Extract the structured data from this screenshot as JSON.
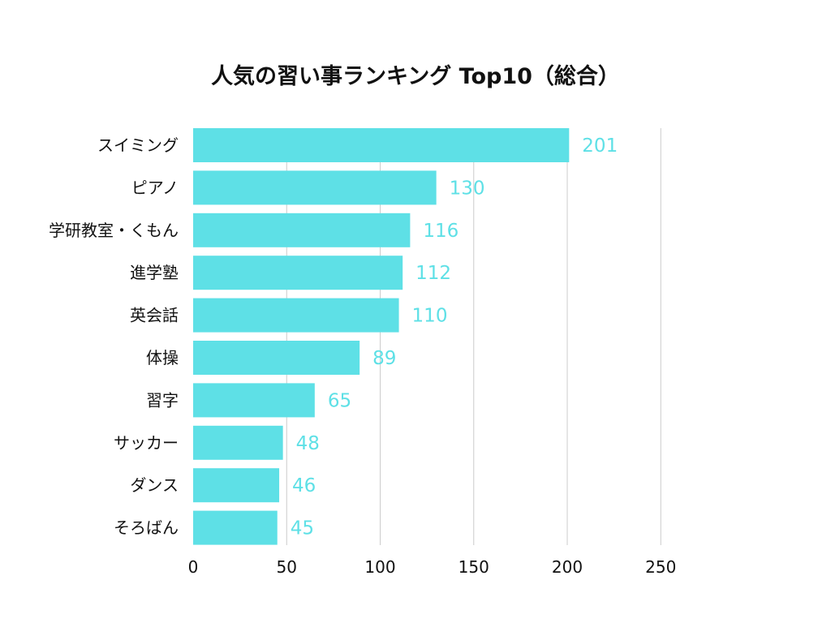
{
  "chart_data": {
    "type": "bar",
    "orientation": "horizontal",
    "title": "人気の習い事ランキング Top10（総合）",
    "categories": [
      "スイミング",
      "ピアノ",
      "学研教室・くもん",
      "進学塾",
      "英会話",
      "体操",
      "習字",
      "サッカー",
      "ダンス",
      "そろばん"
    ],
    "values": [
      201,
      130,
      116,
      112,
      110,
      89,
      65,
      48,
      46,
      45
    ],
    "xlim": [
      0,
      250
    ],
    "xticks": [
      0,
      50,
      100,
      150,
      200,
      250
    ],
    "grid": true,
    "data_labels": true,
    "bar_color": "#5ee0e6",
    "label_color": "#5ee0e6",
    "grid_color": "#cccccc"
  }
}
